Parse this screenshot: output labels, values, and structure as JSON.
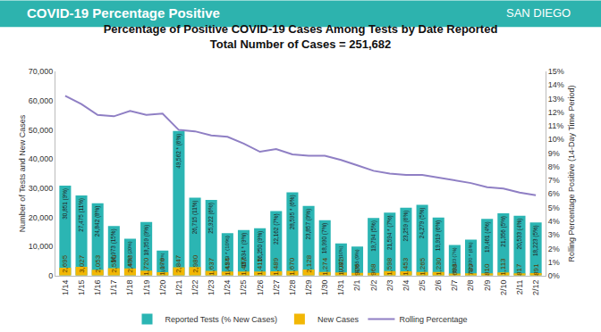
{
  "header": {
    "title": "COVID-19 Percentage Positive",
    "logo_text": "SAN DIEGO"
  },
  "chart_data": {
    "type": "bar",
    "title": "Percentage of Positive COVID-19 Cases Among Tests by Date Reported",
    "subtitle": "Total Number of Cases = 251,682",
    "y_label": "Number of Tests and New Cases",
    "y2_label": "Rolling Percentage Positive (14-Day Time Period)",
    "categories": [
      "1/14",
      "1/15",
      "1/16",
      "1/17",
      "1/18",
      "1/19",
      "1/20",
      "1/21",
      "1/22",
      "1/23",
      "1/24",
      "1/25",
      "1/26",
      "1/27",
      "1/28",
      "1/29",
      "1/30",
      "1/31",
      "2/1",
      "2/2",
      "2/3",
      "2/4",
      "2/5",
      "2/6",
      "2/7",
      "2/8",
      "2/9",
      "2/10",
      "2/11",
      "2/12"
    ],
    "series": [
      {
        "name": "Reported Tests (% New Cases)",
        "type": "bar",
        "color": "#2bb5b3",
        "values": [
          30851,
          27475,
          24842,
          16973,
          12675,
          18359,
          8635,
          49562,
          26715,
          25922,
          14573,
          15634,
          16250,
          22162,
          28595,
          23857,
          18990,
          11027,
          9955,
          19794,
          21594,
          23259,
          24279,
          19919,
          10523,
          12370,
          19461,
          21356,
          20533,
          18223
        ],
        "value_labels": [
          "30,851 (9%)",
          "27,475 (11%)",
          "24,842 (8%)",
          "16,973 (15%)",
          "12,675 * (20%)",
          "18,359 (9%)",
          "8,635 (14%)",
          "49,562 * (6%)",
          "26,715 (11%)",
          "25,922 (6%)",
          "14,573 * (10%)",
          "15,634 * (9%)",
          "16,250 (9%)",
          "22,162 (7%)",
          "28,595 * (6%)",
          "23,857 (9%)",
          "18,990 (7%)",
          "11,027 (10%)",
          "9,955 (9%)",
          "19,794 (5%)",
          "21,594 * (7%)",
          "23,259 (6%)",
          "24,279 (5%)",
          "19,919 (6%)",
          "10,523 (7%)",
          "12,370 * (6%)",
          "19,461 (4%)",
          "21,356 (5%)",
          "20,533 (4%)",
          "18,223 (5%)"
        ]
      },
      {
        "name": "New Cases",
        "type": "bar",
        "color": "#f2b705",
        "values": [
          2695,
          3027,
          2053,
          2550,
          2498,
          1720,
          1176,
          2847,
          2980,
          1637,
          1434,
          1437,
          1415,
          1489,
          1670,
          2128,
          1274,
          1082,
          926,
          968,
          1598,
          1453,
          1265,
          1230,
          698,
          789,
          810,
          1113,
          817,
          891
        ],
        "value_labels": [
          "2,695",
          "3,027",
          "2,053",
          "2,550",
          "2,498",
          "1,720",
          "1,176",
          "2,847",
          "2,980",
          "1,637",
          "1,434",
          "1,437",
          "1,415",
          "1,489",
          "1,670",
          "2,128",
          "1,274",
          "1,082",
          "926",
          "968",
          "1,598",
          "1,453",
          "1,265",
          "1,230",
          "698",
          "789",
          "810",
          "1,113",
          "817",
          "891"
        ]
      },
      {
        "name": "Rolling Percentage",
        "type": "line",
        "axis": "y2",
        "color": "#8f7fc4",
        "values": [
          13.2,
          12.6,
          11.8,
          11.7,
          12.1,
          11.8,
          11.9,
          10.7,
          10.6,
          10.3,
          10.2,
          9.7,
          9.1,
          9.3,
          8.9,
          8.8,
          8.8,
          8.5,
          8.1,
          7.7,
          7.5,
          7.4,
          7.4,
          7.2,
          7.0,
          6.8,
          6.5,
          6.4,
          6.1,
          5.9
        ]
      }
    ],
    "ylim": [
      0,
      70000
    ],
    "yticks": [
      0,
      {
        "value": 10000,
        "label": "10,000"
      },
      {
        "value": 20000,
        "label": "20,000"
      },
      {
        "value": 30000,
        "label": "30,000"
      },
      {
        "value": 40000,
        "label": "40,000"
      },
      {
        "value": 50000,
        "label": "50,000"
      },
      {
        "value": 60000,
        "label": "60,000"
      },
      {
        "value": 70000,
        "label": "70,000"
      }
    ],
    "y2lim": [
      0,
      15
    ],
    "y2ticks": [
      {
        "value": 0,
        "label": "0%"
      },
      {
        "value": 1,
        "label": "1%"
      },
      {
        "value": 2,
        "label": "2%"
      },
      {
        "value": 3,
        "label": "3%"
      },
      {
        "value": 4,
        "label": "4%"
      },
      {
        "value": 5,
        "label": "5%"
      },
      {
        "value": 6,
        "label": "6%"
      },
      {
        "value": 7,
        "label": "7%"
      },
      {
        "value": 8,
        "label": "8%"
      },
      {
        "value": 9,
        "label": "9%"
      },
      {
        "value": 10,
        "label": "10%"
      },
      {
        "value": 11,
        "label": "11%"
      },
      {
        "value": 12,
        "label": "12%"
      },
      {
        "value": 13,
        "label": "13%"
      },
      {
        "value": 14,
        "label": "14%"
      },
      {
        "value": 15,
        "label": "15%"
      }
    ],
    "grid": false,
    "legend": "bottom",
    "data_labels": true
  }
}
